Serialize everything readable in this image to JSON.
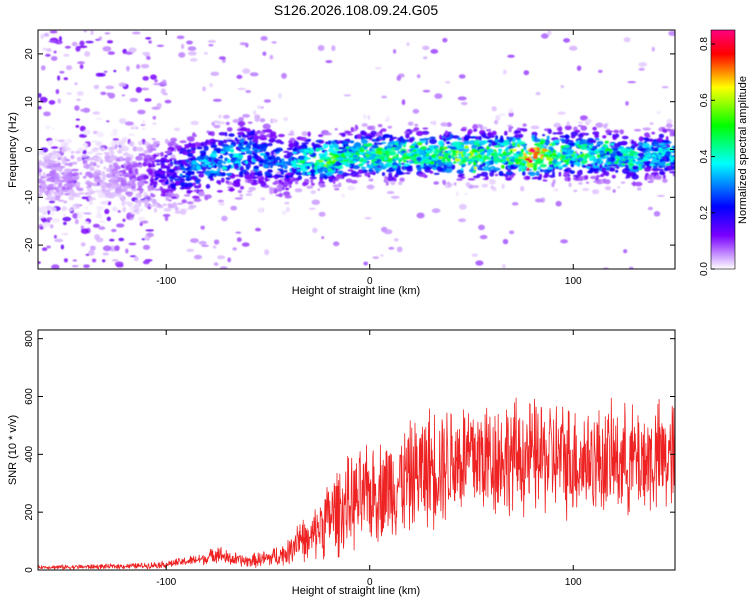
{
  "title": "S126.2026.108.09.24.G05",
  "chart_data": [
    {
      "type": "heatmap",
      "xlabel": "Height of straight line (km)",
      "ylabel": "Frequency (Hz)",
      "xlim": [
        -163,
        150
      ],
      "ylim": [
        -25,
        25
      ],
      "xticks": [
        -100,
        0,
        100
      ],
      "yticks": [
        -20,
        -10,
        0,
        10,
        20
      ],
      "colorbar": {
        "label": "Normalized spectral amplitude",
        "range": [
          0.0,
          0.85
        ],
        "ticks": [
          0.0,
          0.2,
          0.4,
          0.6,
          0.8
        ],
        "tick_labels": [
          "0.0",
          "0.2",
          "0.4",
          "0.6",
          "0.8"
        ],
        "colors": [
          "#ffffff",
          "#7a00ff",
          "#0000ff",
          "#00ffff",
          "#00ff00",
          "#ffff00",
          "#ff0000",
          "#ff0080"
        ]
      },
      "band_trace": {
        "x": [
          -163,
          -150,
          -130,
          -110,
          -100,
          -90,
          -80,
          -70,
          -60,
          -50,
          -40,
          -30,
          -20,
          -10,
          0,
          10,
          20,
          30,
          40,
          50,
          60,
          70,
          80,
          90,
          100,
          110,
          120,
          130,
          140,
          150
        ],
        "y": [
          -6,
          -6,
          -5,
          -5,
          -5,
          -4,
          -3,
          -2,
          -1,
          -2,
          -3,
          -2,
          -2,
          -1,
          -1,
          -1,
          -1,
          -1,
          -1,
          -1,
          -1,
          -1,
          -1,
          -1,
          -1,
          -1,
          -1,
          -2,
          -1,
          -1
        ],
        "peak_amplitude": [
          0.05,
          0.08,
          0.05,
          0.12,
          0.22,
          0.3,
          0.35,
          0.38,
          0.35,
          0.3,
          0.3,
          0.5,
          0.55,
          0.45,
          0.5,
          0.55,
          0.5,
          0.5,
          0.55,
          0.6,
          0.5,
          0.6,
          0.8,
          0.55,
          0.5,
          0.5,
          0.45,
          0.45,
          0.4,
          0.4
        ]
      }
    },
    {
      "type": "line",
      "xlabel": "Height of straight line (km)",
      "ylabel": "SNR (10 * v/v)",
      "xlim": [
        -163,
        150
      ],
      "ylim": [
        0,
        830
      ],
      "xticks": [
        -100,
        0,
        100
      ],
      "yticks": [
        0,
        200,
        400,
        600,
        800
      ],
      "color": "#ee2222",
      "series": [
        {
          "name": "SNR",
          "x": [
            -163,
            -150,
            -130,
            -110,
            -100,
            -90,
            -80,
            -75,
            -70,
            -60,
            -50,
            -40,
            -35,
            -30,
            -25,
            -20,
            -15,
            -10,
            -5,
            0,
            10,
            20,
            30,
            40,
            50,
            60,
            70,
            80,
            90,
            100,
            110,
            120,
            130,
            140,
            150
          ],
          "mean": [
            10,
            10,
            12,
            15,
            20,
            30,
            40,
            60,
            40,
            30,
            40,
            60,
            120,
            90,
            150,
            180,
            210,
            230,
            240,
            260,
            290,
            320,
            360,
            380,
            390,
            390,
            390,
            390,
            390,
            380,
            380,
            380,
            380,
            380,
            390
          ],
          "spread": [
            5,
            8,
            8,
            10,
            12,
            15,
            20,
            30,
            25,
            20,
            30,
            40,
            80,
            60,
            100,
            130,
            150,
            150,
            160,
            160,
            170,
            180,
            200,
            200,
            200,
            200,
            190,
            190,
            190,
            190,
            180,
            180,
            180,
            190,
            190
          ]
        }
      ]
    }
  ]
}
